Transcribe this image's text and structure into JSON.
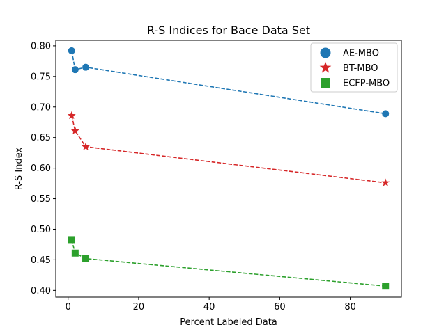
{
  "chart_data": {
    "type": "scatter",
    "title": "R-S Indices for Bace Data Set",
    "xlabel": "Percent Labeled Data",
    "ylabel": "R-S Index",
    "xlim": [
      -3.5,
      94.5
    ],
    "ylim": [
      0.389,
      0.809
    ],
    "xticks": [
      0,
      20,
      40,
      60,
      80
    ],
    "yticks": [
      0.4,
      0.45,
      0.5,
      0.55,
      0.6,
      0.65,
      0.7,
      0.75,
      0.8
    ],
    "ytick_labels": [
      "0.40",
      "0.45",
      "0.50",
      "0.55",
      "0.60",
      "0.65",
      "0.70",
      "0.75",
      "0.80"
    ],
    "legend_position": "top-right",
    "series": [
      {
        "name": "AE-MBO",
        "marker": "circle",
        "color": "#1f77b4",
        "x": [
          1,
          2,
          5,
          90
        ],
        "y": [
          0.792,
          0.761,
          0.765,
          0.689
        ]
      },
      {
        "name": "BT-MBO",
        "marker": "star",
        "color": "#d62728",
        "x": [
          1,
          2,
          5,
          90
        ],
        "y": [
          0.686,
          0.661,
          0.635,
          0.576
        ]
      },
      {
        "name": "ECFP-MBO",
        "marker": "square",
        "color": "#2ca02c",
        "x": [
          1,
          2,
          5,
          90
        ],
        "y": [
          0.483,
          0.461,
          0.452,
          0.407
        ]
      }
    ]
  }
}
